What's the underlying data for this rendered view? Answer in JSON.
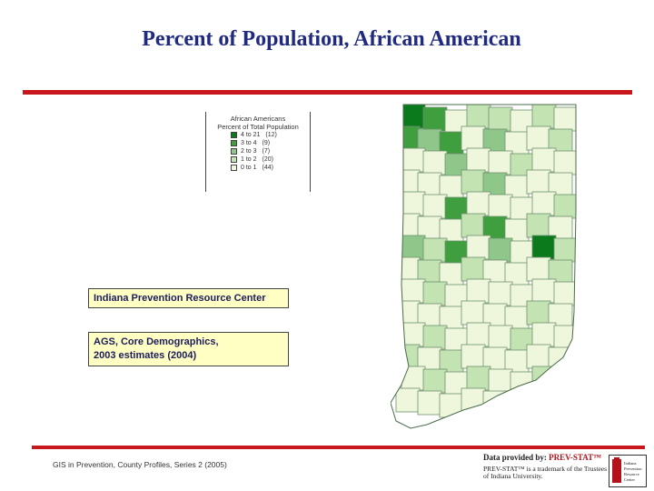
{
  "title": "Percent of Population, African American",
  "legend": {
    "title_line1": "African Americans",
    "title_line2": "Percent of Total Population",
    "classes": [
      {
        "label": "4 to 21",
        "count": "(12)",
        "color": "#0a7a1c"
      },
      {
        "label": "3 to 4",
        "count": "(9)",
        "color": "#3f9e3e"
      },
      {
        "label": "2 to 3",
        "count": "(7)",
        "color": "#8fc68a"
      },
      {
        "label": "1 to 2",
        "count": "(20)",
        "color": "#c3e3b3"
      },
      {
        "label": "0 to 1",
        "count": "(44)",
        "color": "#eef7dc"
      }
    ]
  },
  "info_box_1": "Indiana Prevention Resource Center",
  "info_box_2_line1": "AGS, Core Demographics,",
  "info_box_2_line2": "2003 estimates (2004)",
  "footer": "GIS in Prevention, County Profiles, Series 2 (2005)",
  "credit": {
    "line1_prefix": "Data provided by: ",
    "brand": "PREV-STAT™",
    "line2": "PREV-STAT™ is a trademark of the Trustees of Indiana University.",
    "logo_text": "Indiana Prevention Resource Center"
  },
  "colors": {
    "title": "#1f2a80",
    "rule": "#c8161d",
    "box_fill": "#ffffc4"
  },
  "map": {
    "state": "Indiana",
    "counties": [
      [
        0,
        1,
        4,
        3,
        3,
        4,
        3,
        4
      ],
      [
        1,
        2,
        1,
        4,
        2,
        4,
        4,
        3
      ],
      [
        4,
        4,
        2,
        4,
        4,
        3,
        4,
        4
      ],
      [
        4,
        4,
        4,
        3,
        2,
        4,
        4,
        4
      ],
      [
        4,
        4,
        1,
        4,
        4,
        4,
        4,
        3
      ],
      [
        4,
        4,
        4,
        3,
        1,
        4,
        3,
        4
      ],
      [
        2,
        3,
        1,
        4,
        2,
        4,
        0,
        3
      ],
      [
        4,
        3,
        4,
        3,
        4,
        4,
        4,
        3
      ],
      [
        4,
        3,
        4,
        4,
        4,
        4,
        4,
        4
      ],
      [
        4,
        4,
        4,
        4,
        4,
        4,
        3,
        4
      ],
      [
        4,
        3,
        4,
        4,
        4,
        3,
        4,
        4
      ],
      [
        3,
        4,
        3,
        4,
        4,
        4,
        4,
        4
      ],
      [
        4,
        3,
        4,
        3,
        4,
        4,
        3,
        4
      ],
      [
        4,
        4,
        4,
        4,
        4,
        4,
        4,
        4
      ]
    ],
    "colored_notes": "choropleth by county"
  }
}
